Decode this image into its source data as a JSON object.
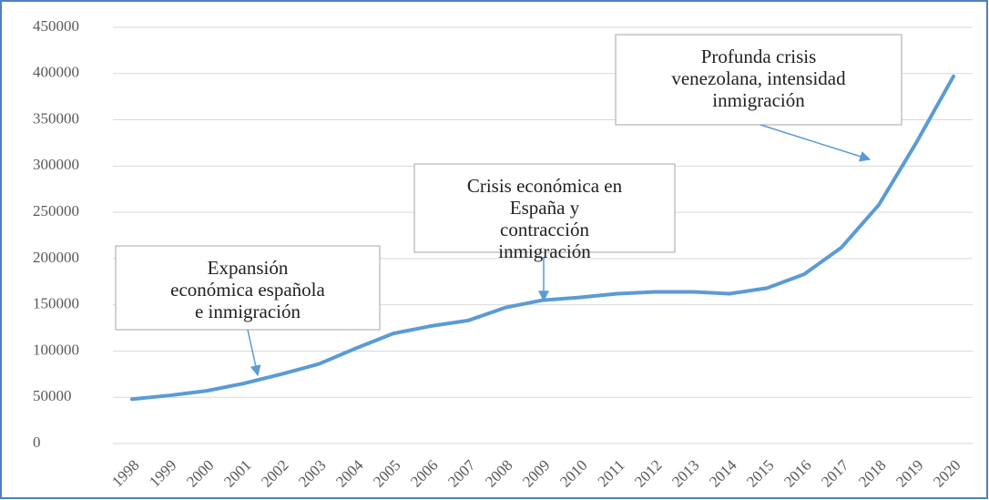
{
  "chart_data": {
    "type": "line",
    "categories": [
      "1998",
      "1999",
      "2000",
      "2001",
      "2002",
      "2003",
      "2004",
      "2005",
      "2006",
      "2007",
      "2008",
      "2009",
      "2010",
      "2011",
      "2012",
      "2013",
      "2014",
      "2015",
      "2016",
      "2017",
      "2018",
      "2019",
      "2020"
    ],
    "values": [
      48000,
      52000,
      57000,
      65000,
      75000,
      86000,
      103000,
      119000,
      127000,
      133000,
      147000,
      155000,
      158000,
      162000,
      164000,
      164000,
      162000,
      168000,
      183000,
      212000,
      258000,
      325000,
      397000
    ],
    "color": "#5b9bd5",
    "ylim": [
      0,
      450000
    ],
    "yticks": [
      0,
      50000,
      100000,
      150000,
      200000,
      250000,
      300000,
      350000,
      400000,
      450000
    ],
    "grid": true,
    "annotations": [
      {
        "lines": [
          "Expansión",
          "económica española",
          "e inmigración"
        ]
      },
      {
        "lines": [
          "Crisis económica en",
          "España y",
          "contracción",
          "inmigración"
        ]
      },
      {
        "lines": [
          "Profunda crisis",
          "venezolana, intensidad",
          "inmigración"
        ]
      }
    ]
  }
}
